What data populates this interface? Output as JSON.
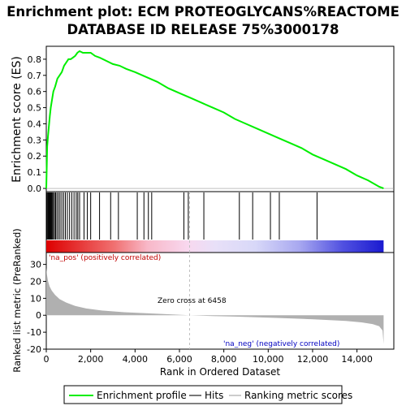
{
  "title_line1": "Enrichment plot: ECM PROTEOGLYCANS%REACTOME",
  "title_line2": "DATABASE ID RELEASE 75%3000178",
  "colors": {
    "es_line": "#00ee00",
    "hits": "#000000",
    "metric_fill": "#b0b0b0",
    "zero_line": "#c0c0c0",
    "pos_label": "#c00000",
    "neg_label": "#0000c0"
  },
  "chart_data": [
    {
      "type": "line",
      "name": "enrichment-profile",
      "ylabel": "Enrichment score (ES)",
      "xlim": [
        0,
        15660
      ],
      "ylim": [
        -0.02,
        0.88
      ],
      "yticks": [
        0.0,
        0.1,
        0.2,
        0.3,
        0.4,
        0.5,
        0.6,
        0.7,
        0.8
      ],
      "ytick_labels": [
        "0.0",
        "0.1",
        "0.2",
        "0.3",
        "0.4",
        "0.5",
        "0.6",
        "0.7",
        "0.8"
      ],
      "x": [
        0,
        40,
        80,
        120,
        160,
        200,
        260,
        320,
        400,
        500,
        600,
        700,
        800,
        900,
        1000,
        1100,
        1200,
        1300,
        1400,
        1500,
        1650,
        1800,
        2000,
        2200,
        2400,
        2700,
        3000,
        3300,
        3600,
        4000,
        4500,
        5000,
        5500,
        6000,
        6500,
        7000,
        7500,
        8000,
        8500,
        9000,
        9500,
        10000,
        10500,
        11000,
        11500,
        12000,
        12500,
        13000,
        13500,
        14000,
        14500,
        15000,
        15200
      ],
      "y": [
        0.0,
        0.26,
        0.33,
        0.39,
        0.45,
        0.5,
        0.55,
        0.6,
        0.63,
        0.68,
        0.7,
        0.72,
        0.76,
        0.78,
        0.8,
        0.8,
        0.81,
        0.82,
        0.84,
        0.85,
        0.84,
        0.84,
        0.84,
        0.82,
        0.81,
        0.79,
        0.77,
        0.76,
        0.74,
        0.72,
        0.69,
        0.66,
        0.62,
        0.59,
        0.56,
        0.53,
        0.5,
        0.47,
        0.43,
        0.4,
        0.37,
        0.34,
        0.31,
        0.28,
        0.25,
        0.21,
        0.18,
        0.15,
        0.12,
        0.08,
        0.05,
        0.01,
        0.0
      ]
    },
    {
      "type": "scatter",
      "name": "hits",
      "x": [
        20,
        60,
        90,
        120,
        150,
        180,
        210,
        240,
        280,
        320,
        370,
        420,
        480,
        550,
        620,
        700,
        780,
        860,
        950,
        1050,
        1150,
        1250,
        1350,
        1420,
        1500,
        1700,
        1850,
        2000,
        2400,
        2900,
        3250,
        4100,
        4400,
        4600,
        4750,
        6200,
        6400,
        7100,
        8700,
        9300,
        10100,
        10500,
        12200
      ]
    },
    {
      "type": "area",
      "name": "ranked-list-metric",
      "ylabel": "Ranked list metric (PreRanked)",
      "xlabel": "Rank in Ordered Dataset",
      "xlim": [
        0,
        15660
      ],
      "ylim": [
        -20,
        37
      ],
      "yticks": [
        -20,
        -10,
        0,
        10,
        20,
        30
      ],
      "ytick_labels": [
        "-20",
        "-10",
        "0",
        "10",
        "20",
        "30"
      ],
      "xticks": [
        0,
        2000,
        4000,
        6000,
        8000,
        10000,
        12000,
        14000
      ],
      "xtick_labels": [
        "0",
        "2,000",
        "4,000",
        "6,000",
        "8,000",
        "10,000",
        "12,000",
        "14,000"
      ],
      "x": [
        0,
        30,
        80,
        150,
        250,
        400,
        600,
        900,
        1300,
        1800,
        2500,
        3500,
        4500,
        5500,
        6458,
        7500,
        8500,
        9500,
        10500,
        11500,
        12500,
        13500,
        14200,
        14700,
        15000,
        15150,
        15200
      ],
      "y": [
        28,
        24,
        20,
        17,
        14.5,
        12,
        9.5,
        7.5,
        5.5,
        4,
        2.8,
        1.8,
        1.2,
        0.6,
        0,
        -0.5,
        -0.8,
        -1.2,
        -1.6,
        -2.1,
        -2.7,
        -3.4,
        -4.2,
        -5.2,
        -6.5,
        -9,
        -17
      ]
    }
  ],
  "annotations": {
    "pos": "'na_pos' (positively correlated)",
    "neg": "'na_neg' (negatively correlated)",
    "zero": "Zero cross at 6458"
  },
  "legend": [
    {
      "label": "Enrichment profile"
    },
    {
      "label": "Hits"
    },
    {
      "label": "Ranking metric scores"
    }
  ]
}
